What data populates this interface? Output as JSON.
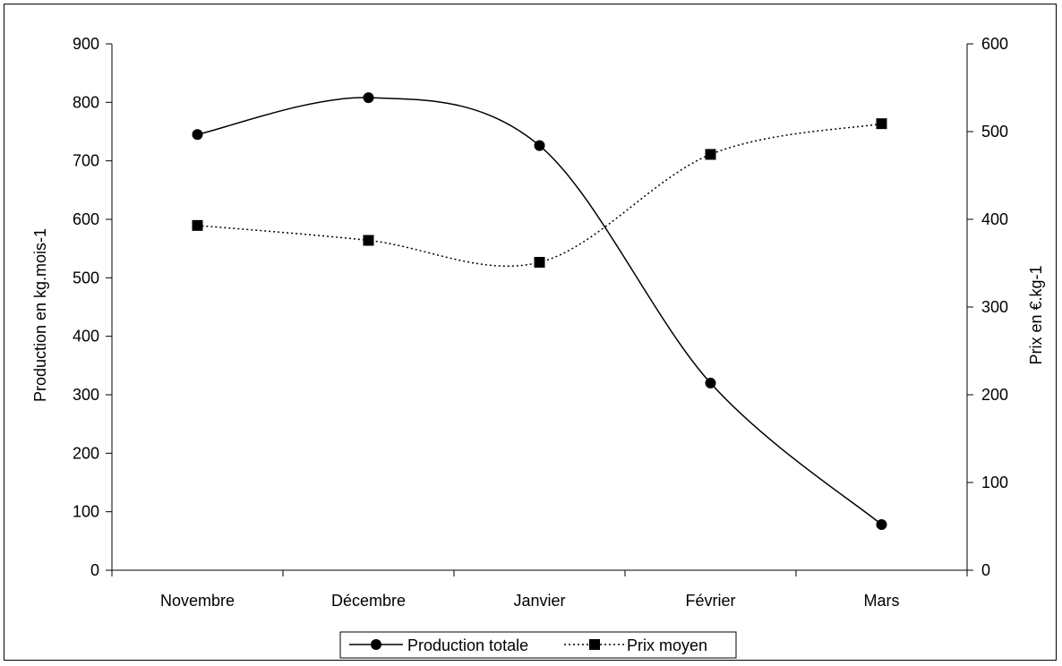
{
  "chart_data": {
    "type": "line",
    "categories": [
      "Novembre",
      "Décembre",
      "Janvier",
      "Février",
      "Mars"
    ],
    "xlabel": "",
    "y_left": {
      "label": "Production en kg.mois-1",
      "range": [
        0,
        900
      ],
      "ticks": [
        0,
        100,
        200,
        300,
        400,
        500,
        600,
        700,
        800,
        900
      ]
    },
    "y_right": {
      "label": "Prix en €.kg-1",
      "range": [
        0,
        600
      ],
      "ticks": [
        0,
        100,
        200,
        300,
        400,
        500,
        600
      ]
    },
    "series": [
      {
        "name": "Production totale",
        "axis": "left",
        "values": [
          745,
          808,
          726,
          320,
          78
        ],
        "marker": "circle",
        "line": "solid",
        "color": "#000000"
      },
      {
        "name": "Prix moyen",
        "axis": "right",
        "values": [
          393,
          376,
          351,
          474,
          509
        ],
        "marker": "square",
        "line": "dotted",
        "color": "#000000"
      }
    ],
    "grid": false,
    "legend": "bottom-center"
  }
}
